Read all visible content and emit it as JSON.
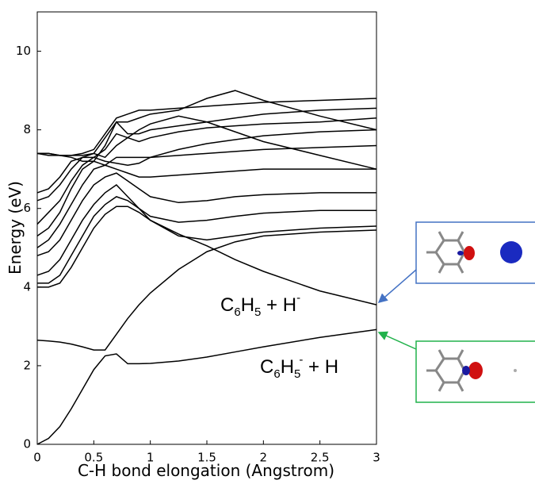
{
  "chart_data": {
    "type": "line",
    "x_label": "C-H bond elongation (Angstrom)",
    "y_label": "Energy (eV)",
    "xlim": [
      0,
      3
    ],
    "ylim": [
      0,
      11
    ],
    "xticks": [
      0,
      0.5,
      1,
      1.5,
      2,
      2.5,
      3
    ],
    "yticks": [
      0,
      2,
      4,
      6,
      8,
      10
    ],
    "grid": false,
    "line_color": "#000000",
    "annotations": [
      [
        "C",
        "6",
        "H",
        "5",
        " + H",
        "-"
      ],
      [
        "C",
        "6",
        "H",
        "5",
        "-",
        " + H"
      ]
    ],
    "x": [
      0,
      0.1,
      0.2,
      0.3,
      0.4,
      0.5,
      0.6,
      0.7,
      0.8,
      0.9,
      1,
      1.25,
      1.5,
      1.75,
      2,
      2.5,
      3
    ],
    "series": [
      {
        "values": [
          0,
          0.15,
          0.45,
          0.9,
          1.4,
          1.9,
          2.25,
          2.3,
          2.05,
          2.05,
          2.06,
          2.12,
          2.22,
          2.35,
          2.48,
          2.72,
          2.92
        ]
      },
      {
        "values": [
          2.65,
          2.63,
          2.6,
          2.55,
          2.48,
          2.4,
          2.4,
          2.8,
          3.2,
          3.55,
          3.85,
          4.45,
          4.9,
          5.15,
          5.3,
          5.4,
          5.45
        ]
      },
      {
        "values": [
          4.0,
          4.0,
          4.1,
          4.5,
          5.0,
          5.5,
          5.85,
          6.05,
          6.05,
          5.9,
          5.7,
          5.35,
          5.05,
          4.7,
          4.4,
          3.9,
          3.55
        ]
      },
      {
        "values": [
          4.1,
          4.1,
          4.3,
          4.8,
          5.3,
          5.8,
          6.1,
          6.3,
          6.2,
          6.0,
          5.7,
          5.3,
          5.2,
          5.3,
          5.4,
          5.5,
          5.55
        ]
      },
      {
        "values": [
          4.3,
          4.4,
          4.7,
          5.2,
          5.7,
          6.1,
          6.4,
          6.6,
          6.3,
          6.0,
          5.8,
          5.65,
          5.7,
          5.8,
          5.88,
          5.95,
          5.95
        ]
      },
      {
        "values": [
          4.8,
          4.9,
          5.2,
          5.7,
          6.2,
          6.6,
          6.8,
          6.9,
          6.7,
          6.5,
          6.3,
          6.15,
          6.2,
          6.3,
          6.35,
          6.4,
          6.4
        ]
      },
      {
        "values": [
          5.0,
          5.2,
          5.6,
          6.1,
          6.6,
          7.0,
          7.1,
          7.0,
          6.9,
          6.8,
          6.8,
          6.85,
          6.9,
          6.95,
          7.0,
          7.0,
          7.0
        ]
      },
      {
        "values": [
          5.3,
          5.5,
          5.9,
          6.5,
          7.0,
          7.2,
          7.1,
          7.3,
          7.3,
          7.3,
          7.3,
          7.35,
          7.4,
          7.45,
          7.5,
          7.55,
          7.6
        ]
      },
      {
        "values": [
          5.6,
          5.9,
          6.2,
          6.7,
          7.1,
          7.3,
          7.2,
          7.15,
          7.1,
          7.15,
          7.3,
          7.5,
          7.65,
          7.75,
          7.85,
          7.95,
          8.0
        ]
      },
      {
        "values": [
          6.2,
          6.3,
          6.6,
          7.0,
          7.3,
          7.4,
          7.3,
          7.6,
          7.8,
          8.0,
          8.15,
          8.35,
          8.2,
          7.95,
          7.7,
          7.35,
          7.0
        ]
      },
      {
        "values": [
          6.4,
          6.5,
          6.8,
          7.2,
          7.3,
          7.3,
          7.5,
          7.9,
          7.8,
          7.7,
          7.8,
          7.95,
          8.05,
          8.1,
          8.15,
          8.2,
          8.3
        ]
      },
      {
        "values": [
          7.4,
          7.35,
          7.35,
          7.3,
          7.2,
          7.2,
          7.6,
          8.2,
          7.9,
          7.9,
          8.0,
          8.1,
          8.2,
          8.3,
          8.4,
          8.5,
          8.55
        ]
      },
      {
        "values": [
          7.4,
          7.4,
          7.35,
          7.35,
          7.35,
          7.4,
          7.8,
          8.2,
          8.2,
          8.3,
          8.4,
          8.5,
          8.8,
          9.0,
          8.75,
          8.35,
          8.0
        ]
      },
      {
        "values": [
          7.4,
          7.4,
          7.35,
          7.35,
          7.4,
          7.5,
          7.9,
          8.3,
          8.4,
          8.5,
          8.5,
          8.55,
          8.6,
          8.65,
          8.7,
          8.75,
          8.8
        ]
      }
    ]
  }
}
